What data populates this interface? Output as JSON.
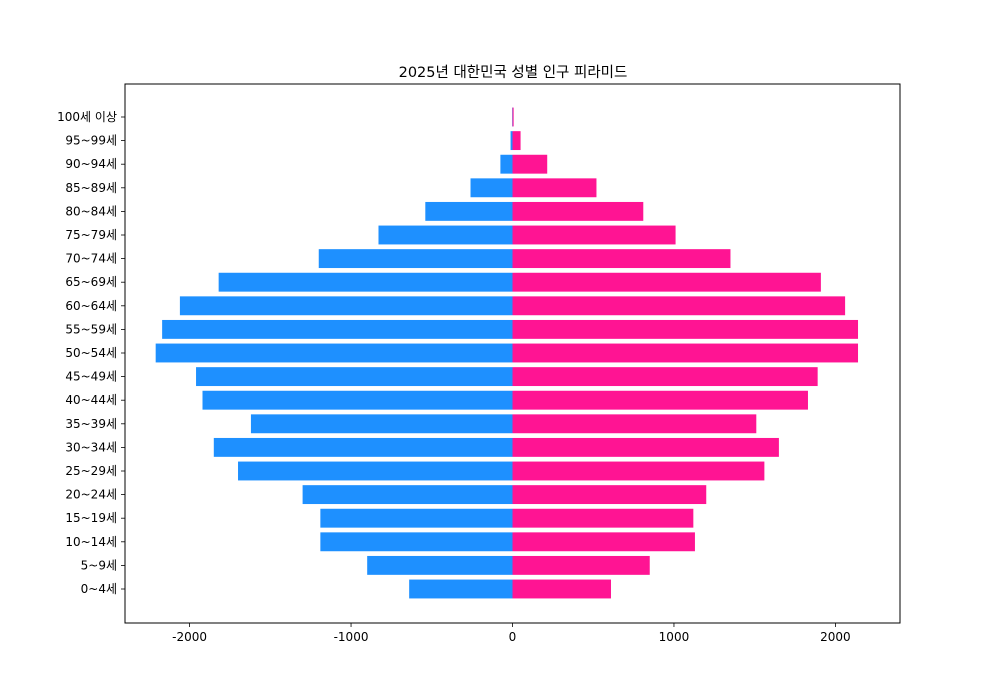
{
  "chart_data": {
    "type": "bar",
    "orientation": "horizontal",
    "title": "2025년 대한민국 성별 인구 피라미드",
    "xlabel": "",
    "ylabel": "",
    "xlim": [
      -2400,
      2400
    ],
    "xticks": [
      -2000,
      -1000,
      0,
      1000,
      2000
    ],
    "xtick_labels": [
      "-2000",
      "-1000",
      "0",
      "1000",
      "2000"
    ],
    "grid": false,
    "legend": "none",
    "categories": [
      "0~4세",
      "5~9세",
      "10~14세",
      "15~19세",
      "20~24세",
      "25~29세",
      "30~34세",
      "35~39세",
      "40~44세",
      "45~49세",
      "50~54세",
      "55~59세",
      "60~64세",
      "65~69세",
      "70~74세",
      "75~79세",
      "80~84세",
      "85~89세",
      "90~94세",
      "95~99세",
      "100세 이상"
    ],
    "series": [
      {
        "color": "#1e90ff",
        "values": [
          -640,
          -900,
          -1190,
          -1190,
          -1300,
          -1700,
          -1850,
          -1620,
          -1920,
          -1960,
          -2210,
          -2170,
          -2060,
          -1820,
          -1200,
          -830,
          -540,
          -260,
          -75,
          -12,
          -2
        ]
      },
      {
        "color": "#ff1493",
        "values": [
          610,
          850,
          1130,
          1120,
          1200,
          1560,
          1650,
          1510,
          1830,
          1890,
          2140,
          2140,
          2060,
          1910,
          1350,
          1010,
          810,
          520,
          215,
          50,
          7
        ]
      }
    ]
  }
}
